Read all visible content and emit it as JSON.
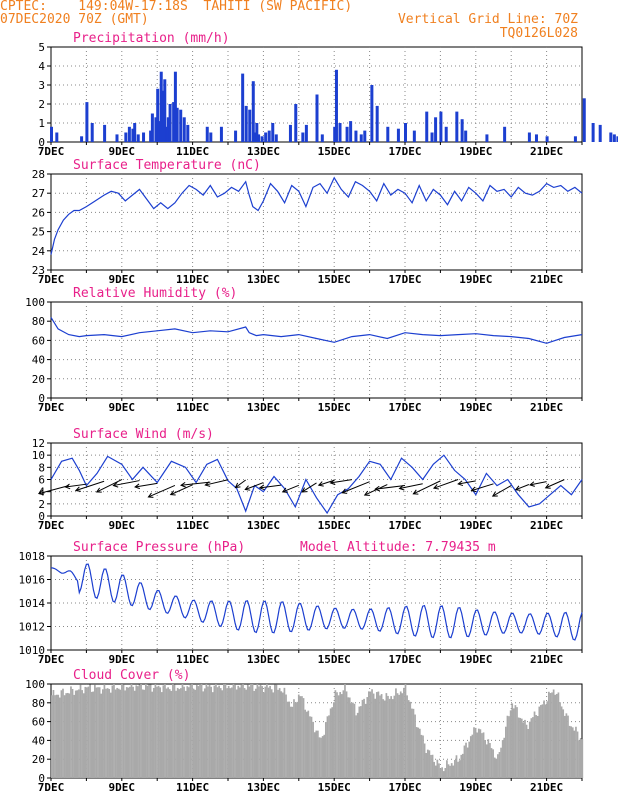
{
  "header": {
    "station": "CPTEC:    149:04W-17:18S  TAHITI (SW PACIFIC)",
    "date": "07DEC2020 70Z (GMT)",
    "grid_line": "Vertical Grid Line: 70Z",
    "code": "TQ0126L028"
  },
  "colors": {
    "header": "#f08020",
    "title": "#e8208a",
    "series": "#1c3fd0",
    "cloud": "#a9a9a9",
    "arrow": "#000000"
  },
  "x_ticks": [
    "7DEC",
    "9DEC",
    "11DEC",
    "13DEC",
    "15DEC",
    "17DEC",
    "19DEC",
    "21DEC"
  ],
  "chart_data": [
    {
      "id": "precip",
      "type": "bar",
      "title": "Precipitation (mm/h)",
      "ylim": [
        0,
        5
      ],
      "yticks": [
        "0",
        "1",
        "2",
        "3",
        "4",
        "5"
      ],
      "x": [
        0.0,
        0.15,
        0.85,
        1.0,
        1.15,
        1.5,
        1.85,
        2.1,
        2.2,
        2.3,
        2.35,
        2.45,
        2.6,
        2.8,
        2.85,
        2.95,
        3.0,
        3.05,
        3.1,
        3.15,
        3.2,
        3.25,
        3.3,
        3.35,
        3.45,
        3.5,
        3.55,
        3.65,
        3.75,
        3.85,
        4.4,
        4.5,
        4.8,
        5.2,
        5.4,
        5.5,
        5.6,
        5.7,
        5.75,
        5.8,
        5.85,
        5.95,
        6.05,
        6.15,
        6.25,
        6.35,
        6.75,
        6.9,
        7.1,
        7.2,
        7.5,
        7.65,
        8.0,
        8.05,
        8.15,
        8.35,
        8.45,
        8.6,
        8.75,
        8.85,
        9.05,
        9.2,
        9.5,
        9.8,
        10.0,
        10.25,
        10.6,
        10.75,
        10.85,
        11.0,
        11.15,
        11.45,
        11.6,
        11.7,
        12.3,
        12.8,
        13.5,
        13.7,
        14.0,
        14.8,
        15.05,
        15.3,
        15.5,
        15.8,
        15.9,
        16.0,
        16.5,
        16.6,
        16.8,
        16.9,
        17.1,
        17.2,
        17.3,
        18.4
      ],
      "values": [
        0.8,
        0.5,
        0.3,
        2.1,
        1.0,
        0.9,
        0.4,
        0.5,
        0.8,
        0.7,
        1.0,
        0.4,
        0.5,
        0.6,
        1.5,
        1.3,
        2.8,
        1.1,
        3.7,
        2.7,
        3.3,
        0.8,
        1.3,
        2.0,
        2.1,
        3.7,
        1.8,
        1.7,
        1.3,
        0.9,
        0.8,
        0.5,
        0.8,
        0.6,
        3.6,
        1.9,
        1.7,
        3.2,
        0.5,
        1.0,
        0.4,
        0.3,
        0.5,
        0.6,
        1.0,
        0.4,
        0.9,
        2.0,
        0.5,
        0.9,
        2.5,
        0.4,
        0.8,
        3.8,
        1.0,
        0.8,
        1.1,
        0.6,
        0.4,
        0.6,
        3.0,
        1.9,
        0.8,
        0.7,
        1.0,
        0.6,
        1.6,
        0.5,
        1.3,
        1.6,
        0.8,
        1.6,
        1.2,
        0.6,
        0.4,
        0.8,
        0.5,
        0.4,
        0.3,
        0.3,
        2.3,
        1.0,
        0.9,
        0.5,
        0.4,
        0.3,
        0.3,
        0.3,
        0.3,
        0.3,
        0.6,
        0.3,
        0.3,
        0.3
      ]
    },
    {
      "id": "temp",
      "type": "line",
      "title": "Surface Temperature (nC)",
      "ylim": [
        23,
        28
      ],
      "yticks": [
        "23",
        "24",
        "25",
        "26",
        "27",
        "28"
      ],
      "x": [
        0.0,
        0.1,
        0.2,
        0.35,
        0.5,
        0.65,
        0.8,
        1.0,
        1.25,
        1.5,
        1.7,
        1.9,
        2.1,
        2.3,
        2.5,
        2.7,
        2.9,
        3.1,
        3.3,
        3.5,
        3.7,
        3.9,
        4.1,
        4.3,
        4.5,
        4.7,
        4.9,
        5.1,
        5.3,
        5.5,
        5.6,
        5.7,
        5.85,
        6.0,
        6.2,
        6.4,
        6.6,
        6.8,
        7.0,
        7.2,
        7.4,
        7.6,
        7.8,
        8.0,
        8.2,
        8.4,
        8.6,
        8.8,
        9.0,
        9.2,
        9.4,
        9.6,
        9.8,
        10.0,
        10.2,
        10.4,
        10.6,
        10.8,
        11.0,
        11.2,
        11.4,
        11.6,
        11.8,
        12.0,
        12.2,
        12.4,
        12.6,
        12.8,
        13.0,
        13.2,
        13.4,
        13.6,
        13.8,
        14.0,
        14.2,
        14.4,
        14.6,
        14.8,
        15.0
      ],
      "values": [
        23.8,
        24.6,
        25.1,
        25.6,
        25.9,
        26.1,
        26.1,
        26.3,
        26.6,
        26.9,
        27.1,
        27.0,
        26.6,
        26.9,
        27.2,
        26.7,
        26.2,
        26.5,
        26.2,
        26.5,
        27.0,
        27.4,
        27.2,
        26.9,
        27.4,
        26.8,
        27.0,
        27.3,
        27.1,
        27.6,
        26.9,
        26.3,
        26.1,
        26.6,
        27.5,
        27.1,
        26.5,
        27.4,
        27.1,
        26.3,
        27.3,
        27.5,
        27.0,
        27.8,
        27.2,
        26.8,
        27.6,
        27.4,
        27.1,
        26.6,
        27.5,
        26.9,
        27.2,
        27.0,
        26.5,
        27.4,
        26.6,
        27.2,
        26.9,
        26.4,
        27.1,
        26.6,
        27.3,
        27.0,
        26.6,
        27.4,
        27.1,
        27.2,
        26.8,
        27.3,
        27.0,
        26.9,
        27.1,
        27.5,
        27.3,
        27.4,
        27.1,
        27.3,
        27.0
      ]
    },
    {
      "id": "rh",
      "type": "line",
      "title": "Relative Humidity (%)",
      "ylim": [
        0,
        100
      ],
      "yticks": [
        "0",
        "20",
        "40",
        "60",
        "80",
        "100"
      ],
      "x": [
        0.0,
        0.2,
        0.5,
        0.8,
        1.0,
        1.5,
        2.0,
        2.5,
        3.0,
        3.5,
        4.0,
        4.5,
        5.0,
        5.5,
        5.6,
        5.8,
        6.0,
        6.5,
        7.0,
        7.5,
        8.0,
        8.5,
        9.0,
        9.5,
        10.0,
        10.5,
        11.0,
        11.5,
        12.0,
        12.5,
        13.0,
        13.5,
        14.0,
        14.5,
        15.0
      ],
      "values": [
        84,
        72,
        66,
        64,
        65,
        66,
        64,
        68,
        70,
        72,
        68,
        70,
        69,
        74,
        68,
        65,
        66,
        64,
        66,
        62,
        58,
        64,
        66,
        62,
        68,
        66,
        65,
        66,
        67,
        65,
        64,
        62,
        57,
        63,
        66
      ]
    },
    {
      "id": "wind",
      "type": "line",
      "title": "Surface Wind (m/s)",
      "ylim": [
        0,
        12
      ],
      "yticks": [
        "0",
        "2",
        "4",
        "6",
        "8",
        "10",
        "12"
      ],
      "x": [
        0.0,
        0.3,
        0.6,
        0.8,
        1.0,
        1.3,
        1.6,
        2.0,
        2.3,
        2.6,
        3.0,
        3.4,
        3.8,
        4.1,
        4.4,
        4.7,
        5.0,
        5.25,
        5.5,
        5.75,
        6.0,
        6.3,
        6.6,
        6.9,
        7.2,
        7.5,
        7.8,
        8.1,
        8.4,
        8.7,
        9.0,
        9.3,
        9.6,
        9.9,
        10.2,
        10.5,
        10.8,
        11.1,
        11.4,
        11.7,
        12.0,
        12.3,
        12.6,
        12.9,
        13.2,
        13.5,
        13.8,
        14.1,
        14.4,
        14.7,
        15.0
      ],
      "values": [
        6.0,
        9.0,
        9.5,
        7.5,
        5.0,
        7.0,
        9.8,
        8.5,
        6.0,
        8.0,
        5.5,
        9.0,
        8.0,
        5.5,
        8.5,
        9.3,
        5.8,
        4.5,
        0.8,
        5.0,
        4.0,
        6.5,
        4.5,
        1.5,
        6.0,
        3.0,
        0.5,
        3.5,
        4.5,
        6.5,
        9.0,
        8.5,
        6.0,
        9.5,
        8.0,
        6.0,
        8.5,
        10.0,
        7.5,
        6.0,
        3.5,
        7.0,
        5.0,
        6.0,
        3.5,
        1.5,
        2.0,
        3.5,
        5.0,
        3.5,
        6.0
      ],
      "vectors_x": [
        0.5,
        1.0,
        1.5,
        2.0,
        2.5,
        3.0,
        3.5,
        4.0,
        4.5,
        5.0,
        5.5,
        6.0,
        6.5,
        7.0,
        7.5,
        8.0,
        8.5,
        9.0,
        9.5,
        10.0,
        10.5,
        11.0,
        11.5,
        12.0,
        12.5,
        13.0,
        13.5,
        14.0,
        14.5
      ]
    },
    {
      "id": "press",
      "type": "line",
      "title": "Surface Pressure (hPa)",
      "annotation": "Model Altitude: 7.79435 m",
      "ylim": [
        1010,
        1018
      ],
      "yticks": [
        "1010",
        "1012",
        "1014",
        "1016",
        "1018"
      ],
      "base": [
        1017.0,
        1016.0,
        1015.2,
        1014.2,
        1013.4,
        1013.0,
        1012.8,
        1012.8,
        1012.7,
        1012.6,
        1012.5,
        1012.4,
        1012.3,
        1012.3,
        1012.2,
        1012.0
      ],
      "amplitude": 1.4
    },
    {
      "id": "cloud",
      "type": "area",
      "title": "Cloud Cover (%)",
      "ylim": [
        0,
        100
      ],
      "yticks": [
        "0",
        "20",
        "40",
        "60",
        "80",
        "100"
      ],
      "x": [
        0.0,
        0.5,
        1.0,
        1.5,
        2.0,
        2.5,
        3.0,
        3.5,
        4.0,
        4.5,
        5.0,
        5.5,
        6.0,
        6.5,
        6.8,
        7.0,
        7.3,
        7.6,
        8.0,
        8.3,
        8.6,
        9.0,
        9.5,
        10.0,
        10.3,
        10.6,
        11.0,
        11.5,
        12.0,
        12.3,
        12.6,
        13.0,
        13.4,
        13.8,
        14.2,
        14.6,
        15.0
      ],
      "values": [
        88,
        92,
        96,
        95,
        97,
        98,
        97,
        96,
        98,
        97,
        98,
        98,
        97,
        95,
        75,
        90,
        65,
        40,
        88,
        95,
        70,
        92,
        85,
        95,
        60,
        30,
        10,
        20,
        55,
        40,
        20,
        80,
        55,
        75,
        95,
        60,
        40
      ]
    }
  ]
}
